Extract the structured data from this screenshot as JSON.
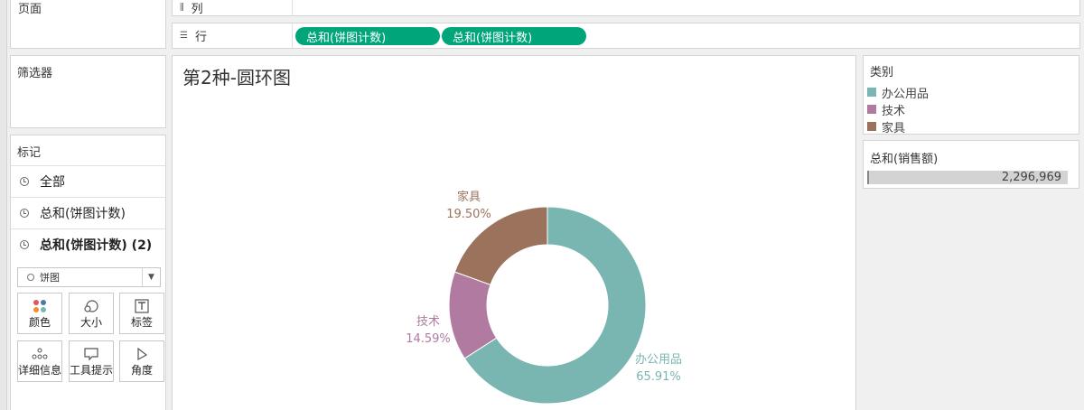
{
  "left_panel": {
    "pages_title": "页面",
    "filters_title": "筛选器",
    "marks_title": "标记",
    "mark_rows": [
      {
        "label": "全部"
      },
      {
        "label": "总和(饼图计数)"
      },
      {
        "label": "总和(饼图计数) (2)"
      }
    ],
    "mark_type": "饼图",
    "mark_buttons": [
      {
        "label": "颜色",
        "icon": "color-dots-icon"
      },
      {
        "label": "大小",
        "icon": "size-shapes-icon"
      },
      {
        "label": "标签",
        "icon": "label-text-icon"
      },
      {
        "label": "详细信息",
        "icon": "detail-dots-icon"
      },
      {
        "label": "工具提示",
        "icon": "tooltip-bubble-icon"
      },
      {
        "label": "角度",
        "icon": "angle-icon"
      }
    ]
  },
  "shelves": {
    "columns_label": "列",
    "rows_label": "行",
    "row_pills": [
      "总和(饼图计数)",
      "总和(饼图计数)"
    ]
  },
  "legend": {
    "title": "类别",
    "items": [
      {
        "label": "办公用品",
        "color": "#79b6b1"
      },
      {
        "label": "技术",
        "color": "#b07aa1"
      },
      {
        "label": "家具",
        "color": "#9b735d"
      }
    ]
  },
  "size_legend": {
    "title": "总和(销售额)",
    "value": "2,296,969"
  },
  "chart_data": {
    "type": "pie",
    "title": "第2种-圆环图",
    "donut": true,
    "slices": [
      {
        "category": "办公用品",
        "percent_label": "65.91%",
        "value": 65.91,
        "color": "#79b6b1"
      },
      {
        "category": "技术",
        "percent_label": "14.59%",
        "value": 14.59,
        "color": "#b07aa1"
      },
      {
        "category": "家具",
        "percent_label": "19.50%",
        "value": 19.5,
        "color": "#9b735d"
      }
    ]
  }
}
